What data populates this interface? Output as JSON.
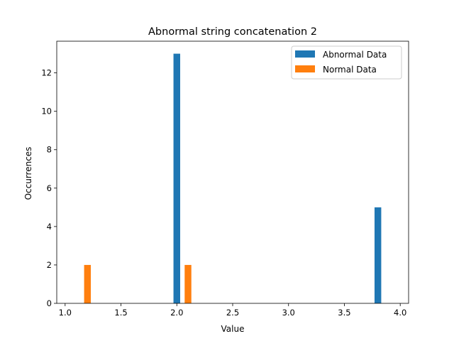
{
  "chart_data": {
    "type": "bar",
    "title": "Abnormal string concatenation 2",
    "xlabel": "Value",
    "ylabel": "Occurrences",
    "xlim": [
      0.925,
      4.075
    ],
    "ylim": [
      0,
      13.65
    ],
    "xticks": [
      1.0,
      1.5,
      2.0,
      2.5,
      3.0,
      3.5,
      4.0
    ],
    "xtick_labels": [
      "1.0",
      "1.5",
      "2.0",
      "2.5",
      "3.0",
      "3.5",
      "4.0"
    ],
    "yticks": [
      0,
      2,
      4,
      6,
      8,
      10,
      12
    ],
    "ytick_labels": [
      "0",
      "2",
      "4",
      "6",
      "8",
      "10",
      "12"
    ],
    "bar_width": 0.06,
    "legend": {
      "placement": "top-right"
    },
    "grid": false,
    "series": [
      {
        "name": "Abnormal Data",
        "color": "#1f77b4",
        "x": [
          2.0,
          3.8
        ],
        "values": [
          13,
          5
        ]
      },
      {
        "name": "Normal Data",
        "color": "#ff7f0e",
        "x": [
          1.2,
          2.1
        ],
        "values": [
          2,
          2
        ]
      }
    ]
  }
}
